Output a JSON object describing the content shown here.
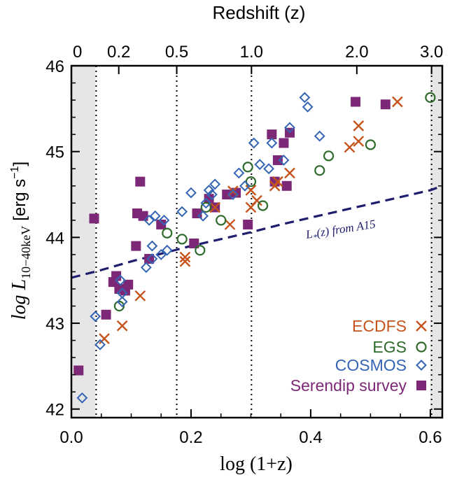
{
  "chart_data": {
    "type": "scatter",
    "title": "",
    "top_axis": {
      "label": "Redshift (z)",
      "ticks": [
        {
          "label": "0",
          "value": 0
        },
        {
          "label": "0.2",
          "value": 0.2
        },
        {
          "label": "0.5",
          "value": 0.5
        },
        {
          "label": "1.0",
          "value": 1.0
        },
        {
          "label": "2.0",
          "value": 2.0
        },
        {
          "label": "3.0",
          "value": 3.0
        }
      ]
    },
    "xlabel": "log (1+z)",
    "ylabel_main": "log L",
    "ylabel_sub": "10−40keV",
    "ylabel_units": "[erg s",
    "ylabel_units_exp": "−1",
    "ylabel_units_close": "]",
    "xlim": [
      0.0,
      0.62
    ],
    "ylim": [
      41.9,
      46.0
    ],
    "x_ticks": [
      "0.0",
      "0.2",
      "0.4",
      "0.6"
    ],
    "y_ticks": [
      "42",
      "43",
      "44",
      "45",
      "46"
    ],
    "vlines_z": [
      0.1,
      0.5,
      1.0,
      3.0
    ],
    "shaded_regions_x": [
      [
        0.0,
        0.04
      ],
      [
        0.6,
        0.62
      ]
    ],
    "legend_position": "bottom-right",
    "curve": {
      "label": "L*(z) from A15",
      "label_main": "L",
      "label_sub": "*",
      "label_rest": "(z) from A15",
      "color": "#1f1d6e",
      "x": [
        0.0,
        0.05,
        0.1,
        0.15,
        0.2,
        0.25,
        0.3,
        0.35,
        0.4,
        0.45,
        0.5,
        0.55,
        0.6,
        0.62
      ],
      "y": [
        43.53,
        43.62,
        43.72,
        43.81,
        43.9,
        43.98,
        44.06,
        44.15,
        44.23,
        44.31,
        44.39,
        44.47,
        44.55,
        44.6
      ]
    },
    "series": [
      {
        "name": "ECDFS",
        "marker": "x",
        "color": "#c4541c",
        "x": [
          0.055,
          0.085,
          0.115,
          0.19,
          0.19,
          0.24,
          0.265,
          0.27,
          0.3,
          0.3,
          0.31,
          0.34,
          0.345,
          0.365,
          0.465,
          0.48,
          0.48,
          0.545
        ],
        "y": [
          42.82,
          42.97,
          43.32,
          43.77,
          43.72,
          44.35,
          44.15,
          44.54,
          44.35,
          44.55,
          44.43,
          44.6,
          44.65,
          44.75,
          45.05,
          45.12,
          45.3,
          45.58
        ]
      },
      {
        "name": "EGS",
        "marker": "o",
        "color": "#2e6b2a",
        "x": [
          0.08,
          0.16,
          0.185,
          0.215,
          0.225,
          0.25,
          0.295,
          0.3,
          0.32,
          0.415,
          0.43,
          0.5,
          0.6
        ],
        "y": [
          43.2,
          44.05,
          43.98,
          43.85,
          44.35,
          44.2,
          44.82,
          44.65,
          44.37,
          44.78,
          44.95,
          45.08,
          45.63
        ]
      },
      {
        "name": "COSMOS",
        "marker": "d",
        "color": "#3465b4",
        "x": [
          0.018,
          0.04,
          0.048,
          0.082,
          0.085,
          0.085,
          0.125,
          0.13,
          0.135,
          0.135,
          0.14,
          0.15,
          0.155,
          0.16,
          0.185,
          0.2,
          0.22,
          0.225,
          0.23,
          0.235,
          0.24,
          0.27,
          0.28,
          0.29,
          0.305,
          0.315,
          0.33,
          0.335,
          0.355,
          0.365,
          0.39,
          0.395,
          0.415
        ],
        "y": [
          42.13,
          43.08,
          42.75,
          43.5,
          43.35,
          43.25,
          43.65,
          44.2,
          43.75,
          43.9,
          44.25,
          43.8,
          44.2,
          43.85,
          44.3,
          44.52,
          44.25,
          44.4,
          44.55,
          44.5,
          44.62,
          44.5,
          44.75,
          44.6,
          45.1,
          44.85,
          44.8,
          45.1,
          44.9,
          45.28,
          45.63,
          45.52,
          45.18
        ]
      },
      {
        "name": "Serendip survey",
        "marker": "s",
        "color": "#7d2777",
        "x": [
          0.012,
          0.038,
          0.058,
          0.07,
          0.075,
          0.08,
          0.09,
          0.095,
          0.108,
          0.11,
          0.115,
          0.12,
          0.13,
          0.15,
          0.205,
          0.21,
          0.23,
          0.24,
          0.26,
          0.275,
          0.295,
          0.335,
          0.34,
          0.345,
          0.355,
          0.36,
          0.365,
          0.475,
          0.525
        ],
        "y": [
          42.45,
          44.22,
          43.1,
          43.48,
          43.55,
          43.4,
          43.38,
          43.45,
          43.9,
          44.28,
          44.65,
          44.25,
          43.75,
          44.15,
          43.93,
          44.28,
          44.45,
          44.35,
          44.5,
          44.52,
          44.15,
          45.2,
          44.65,
          44.9,
          45.1,
          44.6,
          45.22,
          45.58,
          45.55
        ]
      }
    ]
  }
}
